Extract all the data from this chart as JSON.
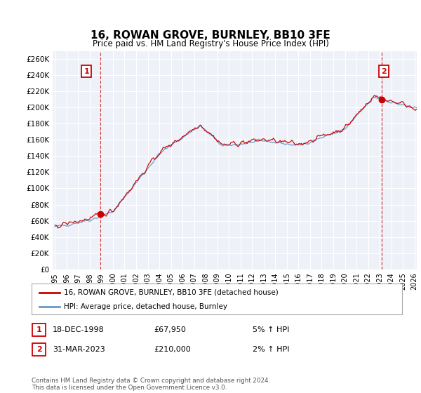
{
  "title": "16, ROWAN GROVE, BURNLEY, BB10 3FE",
  "subtitle": "Price paid vs. HM Land Registry's House Price Index (HPI)",
  "title_fontsize": 11,
  "subtitle_fontsize": 9,
  "ylim": [
    0,
    270000
  ],
  "yticks": [
    0,
    20000,
    40000,
    60000,
    80000,
    100000,
    120000,
    140000,
    160000,
    180000,
    200000,
    220000,
    240000,
    260000
  ],
  "background_color": "#ffffff",
  "plot_bg_color": "#eef2f8",
  "grid_color": "#ffffff",
  "hpi_line_color": "#6699cc",
  "sale_line_color": "#cc0000",
  "vline_color": "#cc0000",
  "point1_year": 1998,
  "point1_month": 12,
  "point1_value": 67950,
  "point1_label": "1",
  "point2_year": 2023,
  "point2_month": 3,
  "point2_value": 210000,
  "point2_label": "2",
  "legend_sale": "16, ROWAN GROVE, BURNLEY, BB10 3FE (detached house)",
  "legend_hpi": "HPI: Average price, detached house, Burnley",
  "table_row1": [
    "1",
    "18-DEC-1998",
    "£67,950",
    "5% ↑ HPI"
  ],
  "table_row2": [
    "2",
    "31-MAR-2023",
    "£210,000",
    "2% ↑ HPI"
  ],
  "footnote": "Contains HM Land Registry data © Crown copyright and database right 2024.\nThis data is licensed under the Open Government Licence v3.0.",
  "xstart_year": 1995,
  "xend_year": 2026
}
